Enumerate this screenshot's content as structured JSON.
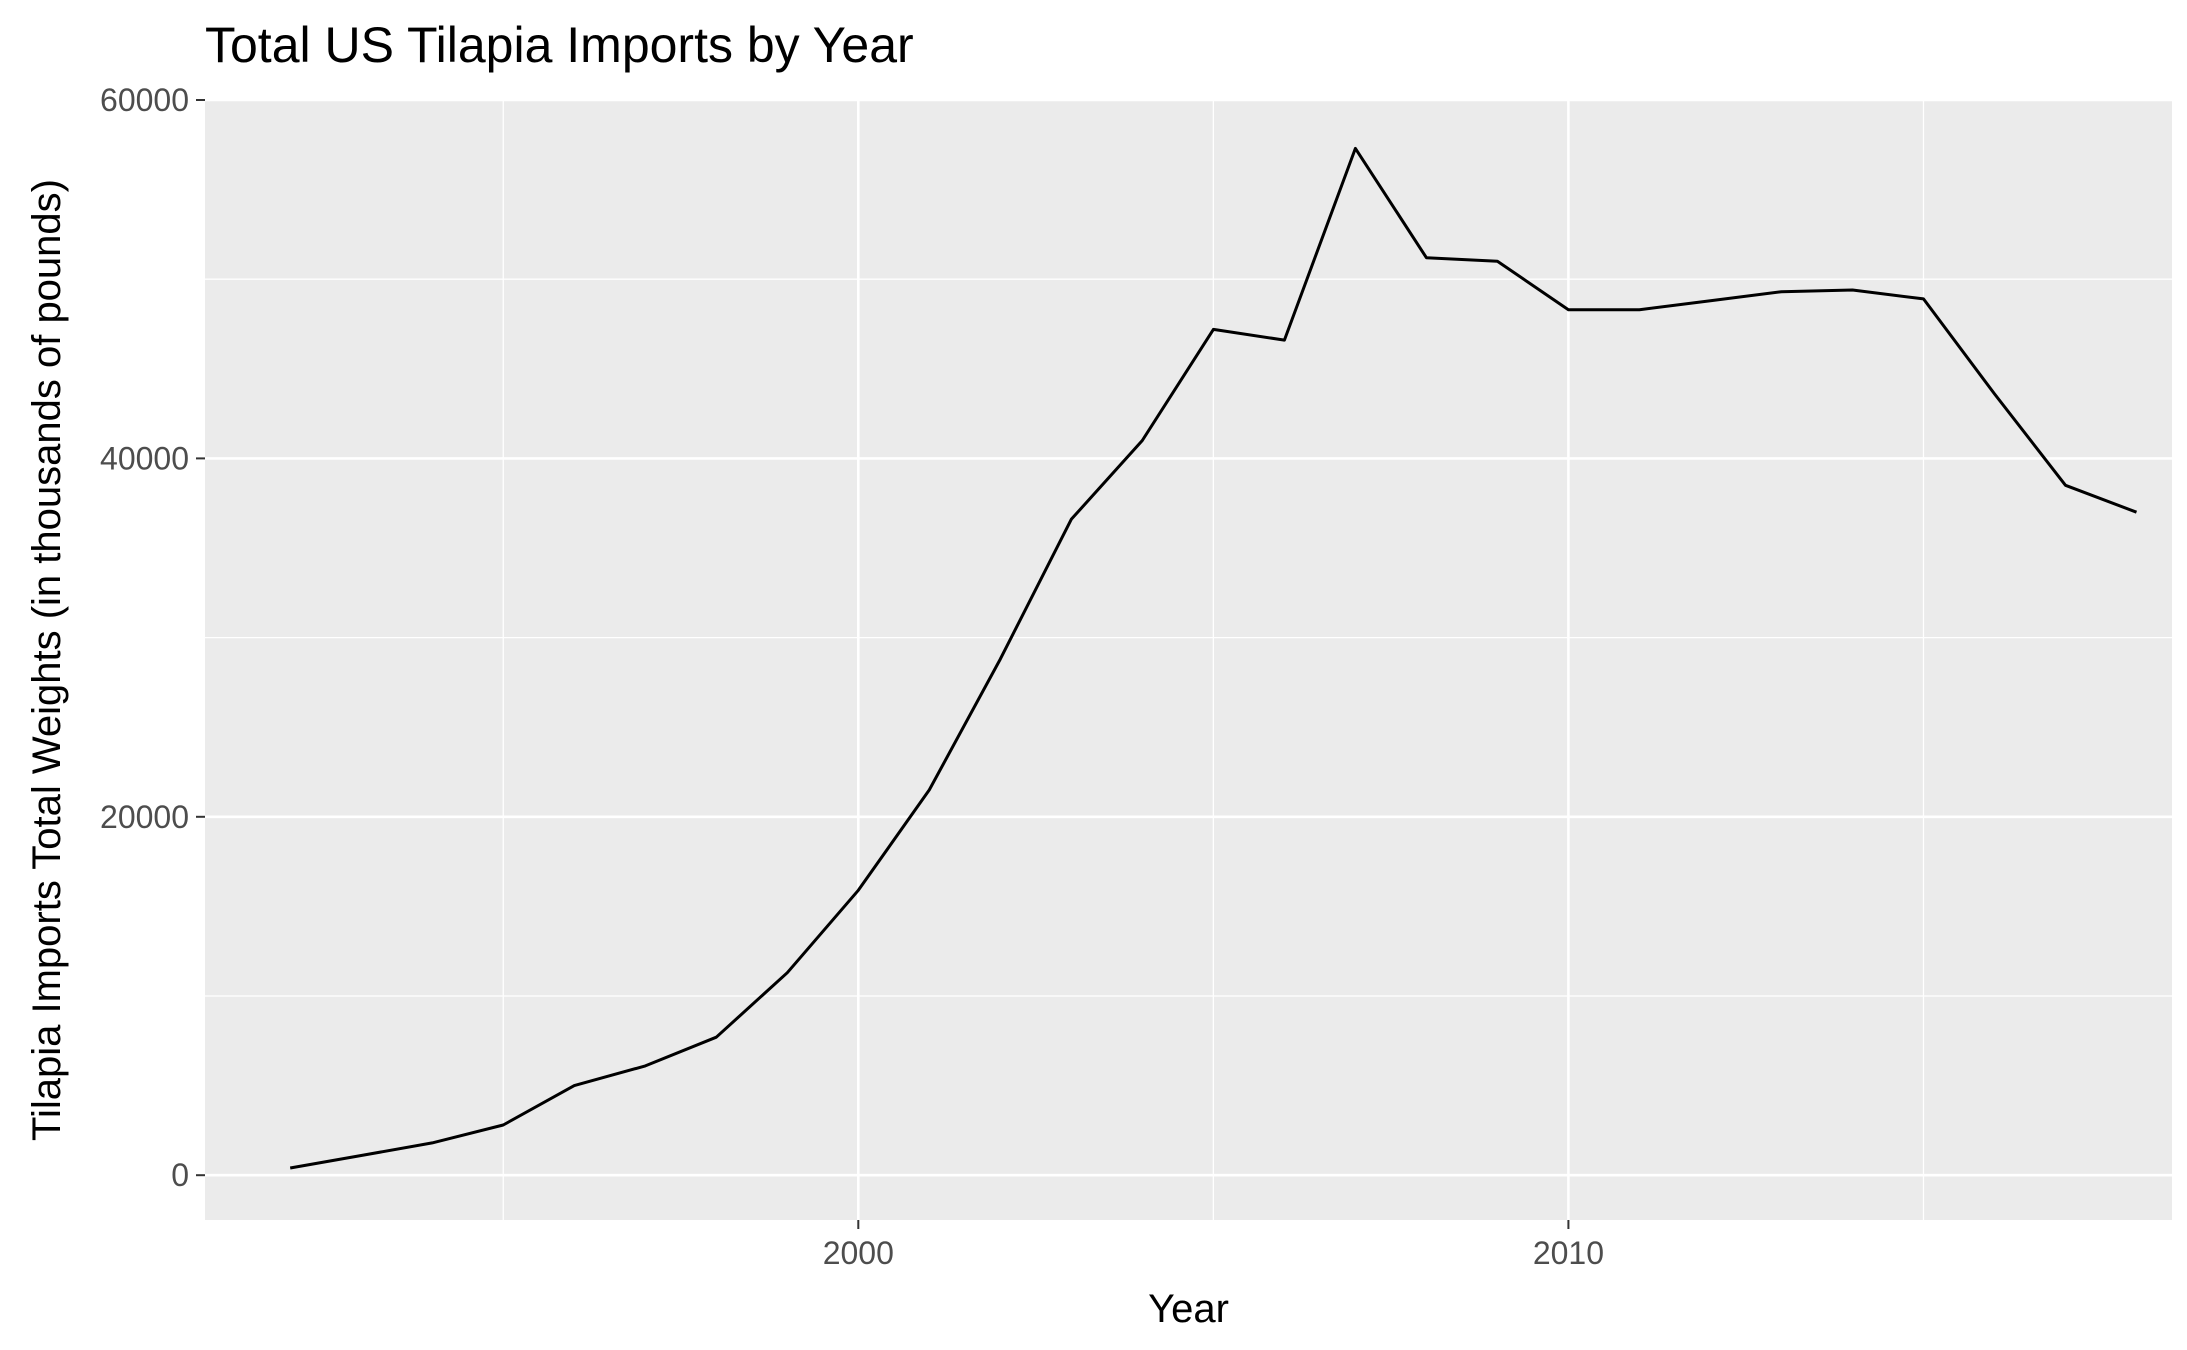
{
  "chart_data": {
    "type": "line",
    "title": "Total US Tilapia Imports by Year",
    "xlabel": "Year",
    "ylabel": "Tilapia Imports Total Weights (in thousands of pounds)",
    "xlim": [
      1990.8,
      2018.5
    ],
    "ylim": [
      -2500,
      60000
    ],
    "x_ticks": [
      2000,
      2010
    ],
    "y_ticks": [
      0,
      20000,
      40000,
      60000
    ],
    "x_minor_ticks": [
      1995,
      2005,
      2015
    ],
    "y_minor_ticks": [
      10000,
      30000,
      50000
    ],
    "grid": true,
    "legend": "none",
    "colors": {
      "panel_background": "#ebebeb",
      "grid": "#ffffff",
      "line": "#000000",
      "tick_label": "#4d4d4d",
      "tick_mark": "#333333"
    },
    "series": [
      {
        "x": [
          1992,
          1993,
          1994,
          1995,
          1996,
          1997,
          1998,
          1999,
          2000,
          2001,
          2002,
          2003,
          2004,
          2005,
          2006,
          2007,
          2008,
          2009,
          2010,
          2011,
          2012,
          2013,
          2014,
          2015,
          2016,
          2017,
          2018
        ],
        "values": [
          400,
          1100,
          1800,
          2800,
          5000,
          6100,
          7700,
          11300,
          15900,
          21500,
          28800,
          36600,
          41000,
          47200,
          46600,
          57300,
          51200,
          51000,
          48300,
          48300,
          48800,
          49300,
          49400,
          48900,
          43600,
          38500,
          37000
        ]
      }
    ]
  }
}
